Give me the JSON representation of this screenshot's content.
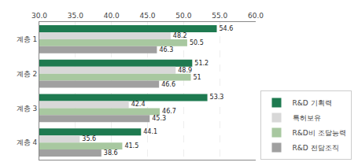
{
  "chart_data": {
    "type": "bar",
    "orientation": "horizontal",
    "categories": [
      "계층 1",
      "계층 2",
      "계층 3",
      "계층 4"
    ],
    "series": [
      {
        "name": "R&D 기획력",
        "color": "#1e7a50",
        "values": [
          54.6,
          51.2,
          53.3,
          44.1
        ]
      },
      {
        "name": "특허보유",
        "color": "#d8d8d8",
        "values": [
          48.2,
          48.9,
          42.4,
          35.6
        ]
      },
      {
        "name": "R&D비 조달능력",
        "color": "#a8c8a0",
        "values": [
          50.5,
          51.0,
          46.7,
          41.5
        ]
      },
      {
        "name": "R&D 전담조직",
        "color": "#a0a0a0",
        "values": [
          46.3,
          46.6,
          45.3,
          38.6
        ]
      }
    ],
    "xlim": [
      30.0,
      60.0
    ],
    "xticks": [
      {
        "value": 30.0,
        "label": "30.0"
      },
      {
        "value": 35.0,
        "label": "35.0"
      },
      {
        "value": 40.0,
        "label": "40.0"
      },
      {
        "value": 45.0,
        "label": "45.0"
      },
      {
        "value": 50.0,
        "label": "50.0"
      },
      {
        "value": 55.0,
        "label": "55.0"
      },
      {
        "value": 60.0,
        "label": "60.0"
      }
    ],
    "grid": true,
    "legend": "lower right",
    "data_labels": true
  }
}
